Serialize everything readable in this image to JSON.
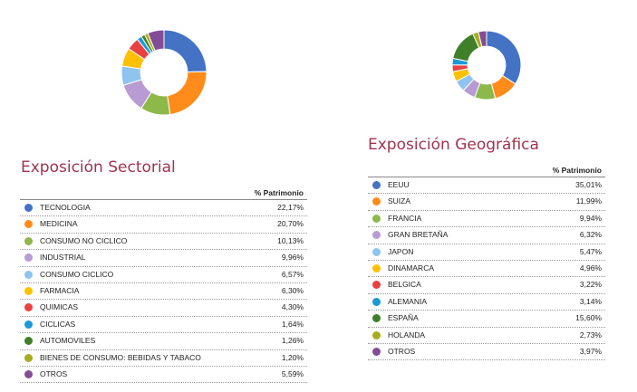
{
  "chart_data": [
    {
      "type": "pie",
      "title": "Exposición Sectorial",
      "value_header": "% Patrimonio",
      "categories": [
        "TECNOLOGIA",
        "MEDICINA",
        "CONSUMO NO CICLICO",
        "INDUSTRIAL",
        "CONSUMO CICLICO",
        "FARMACIA",
        "QUIMICAS",
        "CICLICAS",
        "AUTOMOVILES",
        "BIENES DE CONSUMO: BEBIDAS Y TABACO",
        "OTROS"
      ],
      "values": [
        22.17,
        20.7,
        10.13,
        9.96,
        6.57,
        6.3,
        4.3,
        1.64,
        1.26,
        1.2,
        5.59
      ],
      "labels": [
        "22,17%",
        "20,70%",
        "10,13%",
        "9,96%",
        "6,57%",
        "6,30%",
        "4,30%",
        "1,64%",
        "1,26%",
        "1,20%",
        "5,59%"
      ],
      "colors": [
        "#4472c4",
        "#ff8c1a",
        "#8db84a",
        "#b99bd3",
        "#8fc3f0",
        "#ffc000",
        "#e8413f",
        "#1a9ad6",
        "#3f7f2a",
        "#a7ad1e",
        "#834d96"
      ]
    },
    {
      "type": "pie",
      "title": "Exposición Geográfica",
      "value_header": "% Patrimonio",
      "categories": [
        "EEUU",
        "SUIZA",
        "FRANCIA",
        "GRAN BRETAÑA",
        "JAPON",
        "DINAMARCA",
        "BELGICA",
        "ALEMANIA",
        "ESPAÑA",
        "HOLANDA",
        "OTROS"
      ],
      "values": [
        35.01,
        11.99,
        9.94,
        6.32,
        5.47,
        4.96,
        3.22,
        3.14,
        15.6,
        2.73,
        3.97
      ],
      "labels": [
        "35,01%",
        "11,99%",
        "9,94%",
        "6,32%",
        "5,47%",
        "4,96%",
        "3,22%",
        "3,14%",
        "15,60%",
        "2,73%",
        "3,97%"
      ],
      "colors": [
        "#4472c4",
        "#ff8c1a",
        "#8db84a",
        "#b99bd3",
        "#8fc3f0",
        "#ffc000",
        "#e8413f",
        "#1a9ad6",
        "#3f7f2a",
        "#a7ad1e",
        "#834d96"
      ]
    }
  ]
}
